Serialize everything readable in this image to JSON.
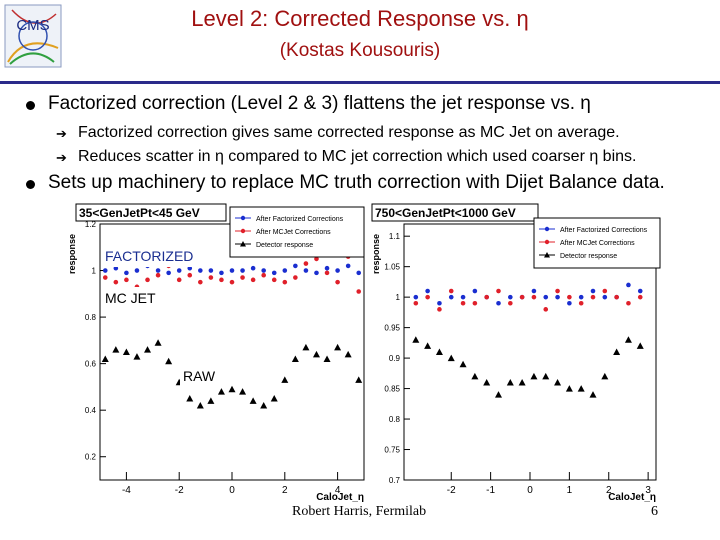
{
  "slide": {
    "title": "Level 2: Corrected Response vs. η",
    "subtitle": "(Kostas Kousouris)",
    "logo_text": "CMS",
    "bullets": [
      "Factorized correction (Level 2 & 3) flattens the jet response vs. η",
      "Sets up machinery to replace MC truth correction with Dijet Balance data."
    ],
    "sub_bullets": [
      "Factorized correction gives same corrected response as MC Jet on average.",
      "Reduces scatter in η compared to MC jet correction which used coarser η bins."
    ],
    "footer_author": "Robert Harris, Fermilab",
    "page_number": "6",
    "colors": {
      "title": "#a01010",
      "rule": "#2a2a8a",
      "factorized": "#1a2ed0",
      "mcjet": "#e0202a",
      "raw": "#000000"
    }
  },
  "chart_data": [
    {
      "type": "scatter",
      "title": "35<GenJetPt<45 GeV",
      "xlabel": "CaloJet_η",
      "ylabel": "response",
      "xlim": [
        -5,
        5
      ],
      "ylim": [
        0.1,
        1.2
      ],
      "x_ticks": [
        "-4",
        "-2",
        "0",
        "2",
        "4"
      ],
      "y_ticks": [
        "0.2",
        "0.4",
        "0.6",
        "0.8",
        "1",
        "1.2"
      ],
      "legend": [
        "After Factorized Corrections",
        "After MCJet Corrections",
        "Detector response"
      ],
      "legend_placement": "top-right",
      "annotations": [
        "FACTORIZED",
        "MC JET",
        "RAW"
      ],
      "series": [
        {
          "name": "After Factorized Corrections",
          "x": [
            -4.8,
            -4.4,
            -4.0,
            -3.6,
            -3.2,
            -2.8,
            -2.4,
            -2.0,
            -1.6,
            -1.2,
            -0.8,
            -0.4,
            0.0,
            0.4,
            0.8,
            1.2,
            1.6,
            2.0,
            2.4,
            2.8,
            3.2,
            3.6,
            4.0,
            4.4,
            4.8
          ],
          "y": [
            1.0,
            1.01,
            0.99,
            1.0,
            1.02,
            1.0,
            0.99,
            1.0,
            1.01,
            1.0,
            1.0,
            0.99,
            1.0,
            1.0,
            1.01,
            1.0,
            0.99,
            1.0,
            1.02,
            1.0,
            0.99,
            1.01,
            1.0,
            1.02,
            0.99
          ]
        },
        {
          "name": "After MCJet Corrections",
          "x": [
            -4.8,
            -4.4,
            -4.0,
            -3.6,
            -3.2,
            -2.8,
            -2.4,
            -2.0,
            -1.6,
            -1.2,
            -0.8,
            -0.4,
            0.0,
            0.4,
            0.8,
            1.2,
            1.6,
            2.0,
            2.4,
            2.8,
            3.2,
            3.6,
            4.0,
            4.4,
            4.8
          ],
          "y": [
            0.97,
            0.95,
            0.96,
            0.93,
            0.96,
            0.98,
            1.02,
            0.96,
            0.98,
            0.95,
            0.97,
            0.96,
            0.95,
            0.97,
            0.96,
            0.98,
            0.96,
            0.95,
            0.97,
            1.03,
            1.05,
            0.99,
            0.95,
            1.06,
            0.91
          ]
        },
        {
          "name": "Detector response",
          "x": [
            -4.8,
            -4.4,
            -4.0,
            -3.6,
            -3.2,
            -2.8,
            -2.4,
            -2.0,
            -1.6,
            -1.2,
            -0.8,
            -0.4,
            0.0,
            0.4,
            0.8,
            1.2,
            1.6,
            2.0,
            2.4,
            2.8,
            3.2,
            3.6,
            4.0,
            4.4,
            4.8
          ],
          "y": [
            0.62,
            0.66,
            0.65,
            0.63,
            0.66,
            0.69,
            0.61,
            0.52,
            0.45,
            0.42,
            0.44,
            0.48,
            0.49,
            0.48,
            0.44,
            0.42,
            0.45,
            0.53,
            0.62,
            0.67,
            0.64,
            0.62,
            0.67,
            0.64,
            0.53
          ]
        }
      ]
    },
    {
      "type": "scatter",
      "title": "750<GenJetPt<1000 GeV",
      "xlabel": "CaloJet_η",
      "ylabel": "response",
      "xlim": [
        -3.2,
        3.2
      ],
      "ylim": [
        0.7,
        1.12
      ],
      "x_ticks": [
        "-2",
        "-1",
        "0",
        "1",
        "2",
        "3"
      ],
      "y_ticks": [
        "0.7",
        "0.75",
        "0.8",
        "0.85",
        "0.9",
        "0.95",
        "1",
        "1.05",
        "1.1"
      ],
      "legend": [
        "After Factorized Corrections",
        "After MCJet Corrections",
        "Detector response"
      ],
      "legend_placement": "top-right",
      "series": [
        {
          "name": "After Factorized Corrections",
          "x": [
            -2.9,
            -2.6,
            -2.3,
            -2.0,
            -1.7,
            -1.4,
            -1.1,
            -0.8,
            -0.5,
            -0.2,
            0.1,
            0.4,
            0.7,
            1.0,
            1.3,
            1.6,
            1.9,
            2.2,
            2.5,
            2.8
          ],
          "y": [
            1.0,
            1.01,
            0.99,
            1.0,
            1.0,
            1.01,
            1.0,
            0.99,
            1.0,
            1.0,
            1.01,
            1.0,
            1.0,
            0.99,
            1.0,
            1.01,
            1.0,
            1.0,
            1.02,
            1.01
          ]
        },
        {
          "name": "After MCJet Corrections",
          "x": [
            -2.9,
            -2.6,
            -2.3,
            -2.0,
            -1.7,
            -1.4,
            -1.1,
            -0.8,
            -0.5,
            -0.2,
            0.1,
            0.4,
            0.7,
            1.0,
            1.3,
            1.6,
            1.9,
            2.2,
            2.5,
            2.8
          ],
          "y": [
            0.99,
            1.0,
            0.98,
            1.01,
            0.99,
            0.99,
            1.0,
            1.01,
            0.99,
            1.0,
            1.0,
            0.98,
            1.01,
            1.0,
            0.99,
            1.0,
            1.01,
            1.0,
            0.99,
            1.0
          ]
        },
        {
          "name": "Detector response",
          "x": [
            -2.9,
            -2.6,
            -2.3,
            -2.0,
            -1.7,
            -1.4,
            -1.1,
            -0.8,
            -0.5,
            -0.2,
            0.1,
            0.4,
            0.7,
            1.0,
            1.3,
            1.6,
            1.9,
            2.2,
            2.5,
            2.8
          ],
          "y": [
            0.93,
            0.92,
            0.91,
            0.9,
            0.89,
            0.87,
            0.86,
            0.84,
            0.86,
            0.86,
            0.87,
            0.87,
            0.86,
            0.85,
            0.85,
            0.84,
            0.87,
            0.91,
            0.93,
            0.92
          ]
        }
      ]
    }
  ]
}
